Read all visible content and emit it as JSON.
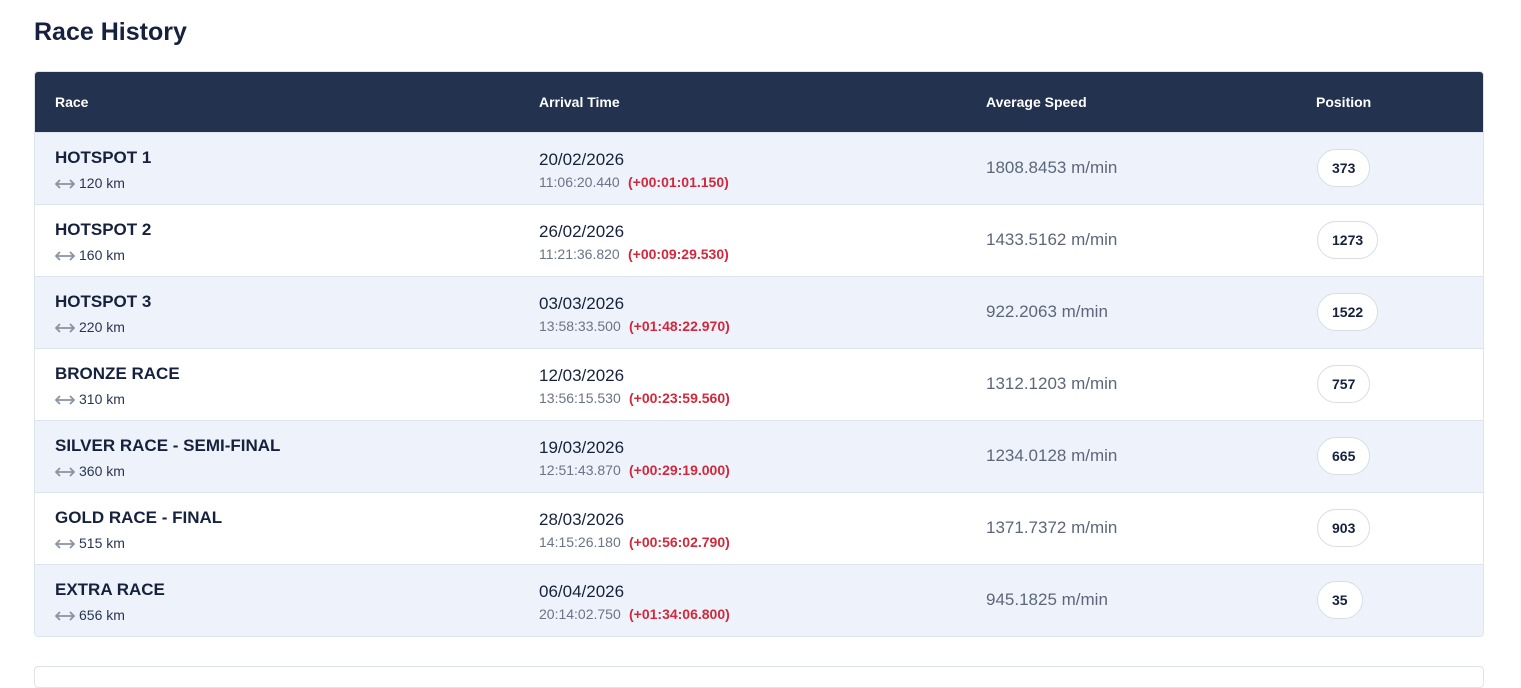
{
  "title": "Race History",
  "table": {
    "headers": [
      "Race",
      "Arrival Time",
      "Average Speed",
      "Position"
    ],
    "rows": [
      {
        "race": "HOTSPOT 1",
        "distance": "120 km",
        "date": "20/02/2026",
        "time": "11:06:20.440",
        "delta": "(+00:01:01.150)",
        "speed": "1808.8453 m/min",
        "position": 373
      },
      {
        "race": "HOTSPOT 2",
        "distance": "160 km",
        "date": "26/02/2026",
        "time": "11:21:36.820",
        "delta": "(+00:09:29.530)",
        "speed": "1433.5162 m/min",
        "position": 1273
      },
      {
        "race": "HOTSPOT 3",
        "distance": "220 km",
        "date": "03/03/2026",
        "time": "13:58:33.500",
        "delta": "(+01:48:22.970)",
        "speed": "922.2063 m/min",
        "position": 1522
      },
      {
        "race": "BRONZE RACE",
        "distance": "310 km",
        "date": "12/03/2026",
        "time": "13:56:15.530",
        "delta": "(+00:23:59.560)",
        "speed": "1312.1203 m/min",
        "position": 757
      },
      {
        "race": "SILVER RACE - SEMI-FINAL",
        "distance": "360 km",
        "date": "19/03/2026",
        "time": "12:51:43.870",
        "delta": "(+00:29:19.000)",
        "speed": "1234.0128 m/min",
        "position": 665
      },
      {
        "race": "GOLD RACE - FINAL",
        "distance": "515 km",
        "date": "28/03/2026",
        "time": "14:15:26.180",
        "delta": "(+00:56:02.790)",
        "speed": "1371.7372 m/min",
        "position": 903
      },
      {
        "race": "EXTRA RACE",
        "distance": "656 km",
        "date": "06/04/2026",
        "time": "20:14:02.750",
        "delta": "(+01:34:06.800)",
        "speed": "945.1825 m/min",
        "position": 35
      }
    ]
  }
}
